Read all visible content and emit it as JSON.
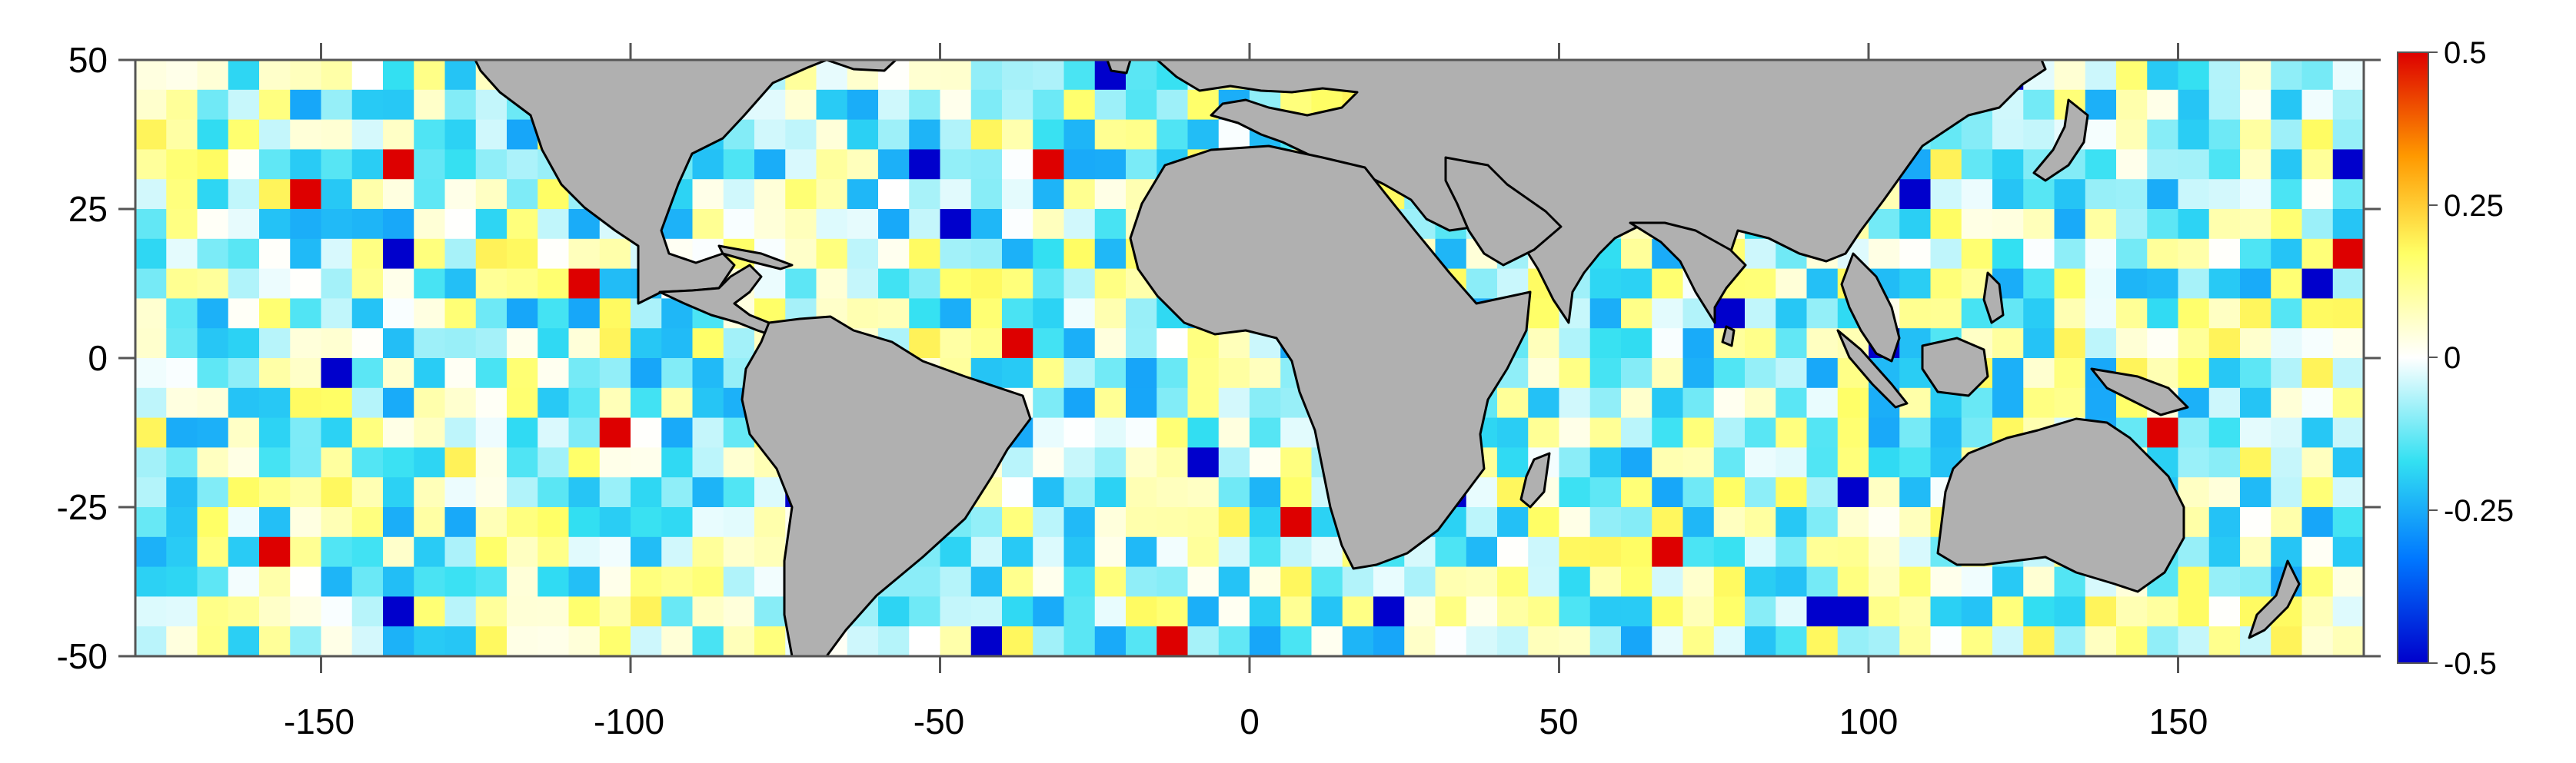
{
  "map": {
    "extent": {
      "lon": [
        -180,
        180
      ],
      "lat": [
        -50,
        50
      ]
    },
    "ocean_grid_cell_deg": 5,
    "land_color": "#b0b0b0",
    "coastline_color": "#000000"
  },
  "axes": {
    "x_ticks": [
      "-150",
      "-100",
      "-50",
      "0",
      "50",
      "100",
      "150"
    ],
    "y_ticks": [
      "50",
      "25",
      "0",
      "-25",
      "-50"
    ]
  },
  "colorbar": {
    "range": [
      -0.5,
      0.5
    ],
    "tick_labels": [
      "0.5",
      "0.25",
      "0",
      "-0.25",
      "-0.5"
    ],
    "stops": [
      "#0000cc",
      "#0077ff",
      "#33e0f2",
      "#ffffff",
      "#ffff66",
      "#ff9900",
      "#dd0000"
    ]
  }
}
